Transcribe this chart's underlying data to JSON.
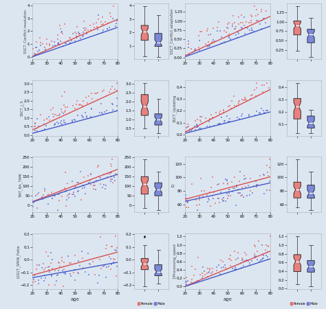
{
  "bg_color": "#dce6f1",
  "scatter_female": "#e8706a",
  "scatter_male": "#6b78d4",
  "line_female": "#d94545",
  "line_male": "#3a50c4",
  "box_female": "#e8706a",
  "box_male": "#6b78d4",
  "row_labels": [
    "SSCT_Conflict resolution",
    "SSCT_j_S",
    "TMT_BA_TIME",
    "LOG(T_SPAN_Fatiw"
  ],
  "right_labels": [
    "SSCT_Conflict adaptation",
    "SSCT_Updating",
    "IQ",
    "1/Processing_speed"
  ],
  "xlabel": "age",
  "legend_female": "Female",
  "legend_male": "Male",
  "age_min": 20,
  "age_max": 80,
  "subplots": [
    {
      "name": "SSCT_Conflict resolution",
      "f_slope": 0.048,
      "m_slope": 0.038,
      "f_int": 0.05,
      "m_int": 0.02,
      "noise_f": 0.6,
      "noise_m": 0.5,
      "cluster_bottom": true,
      "seed": 10
    },
    {
      "name": "SSCT_Conflict adaptation",
      "f_slope": 0.018,
      "m_slope": 0.014,
      "f_int": 0.05,
      "m_int": 0.02,
      "noise_f": 0.25,
      "noise_m": 0.2,
      "cluster_bottom": true,
      "seed": 20
    },
    {
      "name": "SSCT_j_S",
      "f_slope": 0.038,
      "m_slope": 0.022,
      "f_int": 0.3,
      "m_int": 0.1,
      "noise_f": 0.45,
      "noise_m": 0.35,
      "cluster_bottom": true,
      "seed": 30
    },
    {
      "name": "SSCT_Updating",
      "f_slope": 0.006,
      "m_slope": 0.003,
      "f_int": 0.02,
      "m_int": 0.01,
      "noise_f": 0.04,
      "noise_m": 0.03,
      "cluster_bottom": true,
      "seed": 40
    },
    {
      "name": "TMT_BA_TIME",
      "f_slope": 2.8,
      "m_slope": 2.4,
      "f_int": 20,
      "m_int": 18,
      "noise_f": 35,
      "noise_m": 30,
      "cluster_bottom": false,
      "seed": 50
    },
    {
      "name": "IQ",
      "f_slope": 0.55,
      "m_slope": 0.45,
      "f_int": 68,
      "m_int": 65,
      "noise_f": 12,
      "noise_m": 10,
      "cluster_bottom": false,
      "seed": 60
    },
    {
      "name": "LOG(T_SPAN_Fatiw",
      "f_slope": 0.003,
      "m_slope": 0.002,
      "f_int": -0.12,
      "m_int": -0.14,
      "noise_f": 0.07,
      "noise_m": 0.06,
      "cluster_bottom": false,
      "seed": 70
    },
    {
      "name": "1/Processing_speed",
      "f_slope": 0.014,
      "m_slope": 0.011,
      "f_int": 0.01,
      "m_int": 0.005,
      "noise_f": 0.18,
      "noise_m": 0.14,
      "cluster_bottom": true,
      "seed": 80
    }
  ]
}
